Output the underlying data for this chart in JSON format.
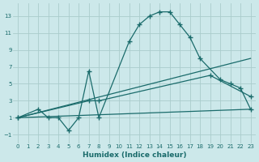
{
  "xlabel": "Humidex (Indice chaleur)",
  "background_color": "#cce8ea",
  "grid_color": "#aacccc",
  "line_color": "#1a6b6b",
  "xlim": [
    -0.5,
    23.5
  ],
  "ylim": [
    -2,
    14.5
  ],
  "xticks": [
    0,
    1,
    2,
    3,
    4,
    5,
    6,
    7,
    8,
    9,
    10,
    11,
    12,
    13,
    14,
    15,
    16,
    17,
    18,
    19,
    20,
    21,
    22,
    23
  ],
  "yticks": [
    -1,
    1,
    3,
    5,
    7,
    9,
    11,
    13
  ],
  "series_main": {
    "x": [
      0,
      2,
      3,
      4,
      5,
      6,
      7,
      8,
      11,
      12,
      13,
      14,
      15,
      16,
      17,
      18,
      20,
      21,
      22,
      23
    ],
    "y": [
      1,
      2,
      1,
      1,
      -0.5,
      1,
      6.5,
      1,
      10,
      12,
      13,
      13.5,
      13.5,
      12,
      10.5,
      8,
      5.5,
      5,
      4.5,
      2
    ]
  },
  "series_flat": {
    "x": [
      0,
      23
    ],
    "y": [
      1,
      2
    ]
  },
  "series_rising": {
    "x": [
      0,
      23
    ],
    "y": [
      1,
      8
    ]
  },
  "series_mid": {
    "x": [
      0,
      7,
      8,
      19,
      23
    ],
    "y": [
      1,
      3,
      3,
      6,
      3.5
    ]
  }
}
